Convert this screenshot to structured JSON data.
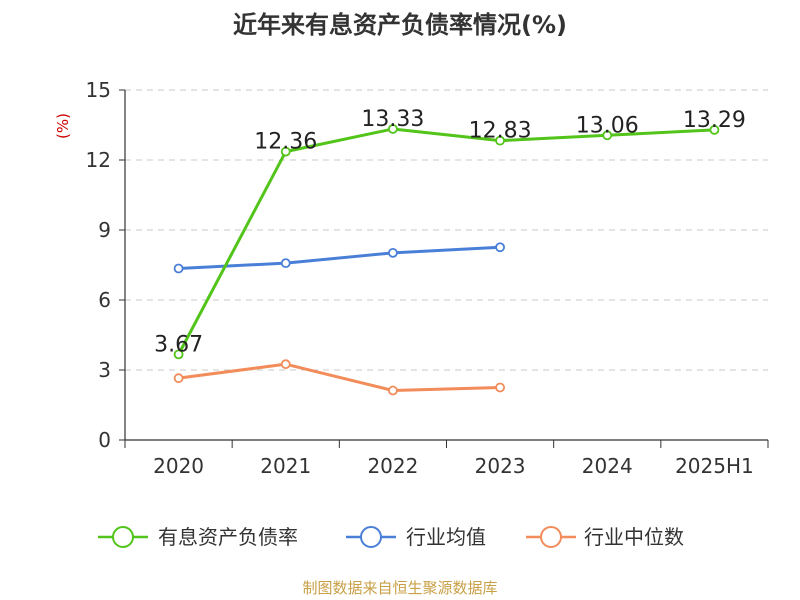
{
  "chart_data": {
    "type": "line",
    "title": "近年来有息资产负债率情况(%)",
    "ylabel": "(%)",
    "xlabel": "",
    "categories": [
      "2020",
      "2021",
      "2022",
      "2023",
      "2024",
      "2025H1"
    ],
    "ylim": [
      0,
      15
    ],
    "yticks": [
      0,
      3,
      6,
      9,
      12,
      15
    ],
    "grid": true,
    "legend_position": "bottom",
    "series": [
      {
        "name": "有息资产负债率",
        "color": "#52c41a",
        "values": [
          3.67,
          12.36,
          13.33,
          12.83,
          13.06,
          13.29
        ],
        "labels": [
          "3.67",
          "12.36",
          "13.33",
          "12.83",
          "13.06",
          "13.29"
        ]
      },
      {
        "name": "行业均值",
        "color": "#4a7fd8",
        "values": [
          7.35,
          7.58,
          8.02,
          8.26,
          null,
          null
        ]
      },
      {
        "name": "行业中位数",
        "color": "#f28c5a",
        "values": [
          2.65,
          3.25,
          2.12,
          2.25,
          null,
          null
        ]
      }
    ],
    "source": "制图数据来自恒生聚源数据库",
    "colors": {
      "axis": "#333333",
      "grid": "#c8c8c8",
      "ylabel": "#cc0000",
      "source": "#c8a046"
    }
  }
}
